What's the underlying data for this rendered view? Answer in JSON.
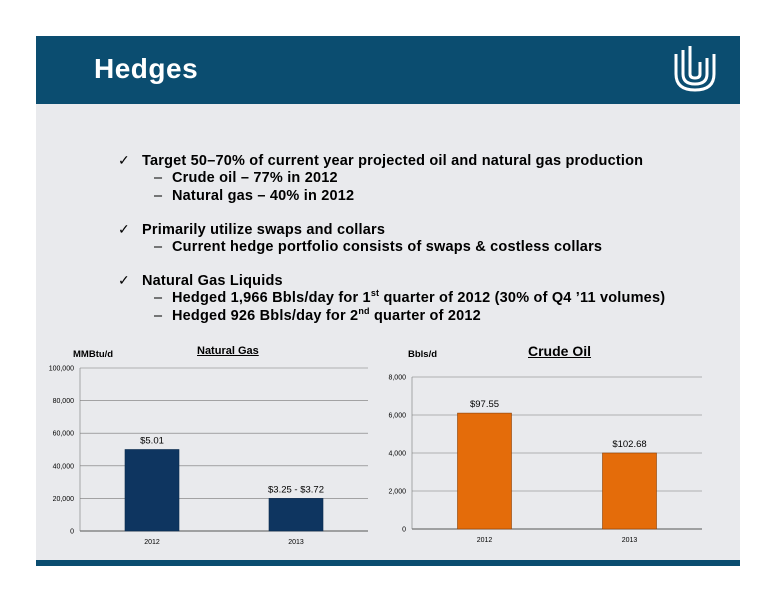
{
  "header": {
    "title": "Hedges"
  },
  "bullets": [
    {
      "text": "Target 50–70% of current year projected oil and natural gas production",
      "subs": [
        {
          "text": "Crude oil – 77% in 2012"
        },
        {
          "text": "Natural gas – 40% in 2012"
        }
      ]
    },
    {
      "text": "Primarily utilize swaps and collars",
      "subs": [
        {
          "text": "Current hedge portfolio consists of swaps & costless collars"
        }
      ]
    },
    {
      "text": "Natural Gas Liquids",
      "subs": [
        {
          "pre": "Hedged 1,966 Bbls/day for 1",
          "sup": "st",
          "post": " quarter of 2012 (30% of Q4 ’11 volumes)"
        },
        {
          "pre": "Hedged 926 Bbls/day for 2",
          "sup": "nd",
          "post": " quarter of 2012"
        }
      ]
    }
  ],
  "colors": {
    "header": "#0b4d70",
    "natural_gas_bar": "#0e3560",
    "crude_oil_bar": "#e46c0a",
    "background": "#e9eaed"
  },
  "chart_data": [
    {
      "type": "bar",
      "title": "Natural Gas",
      "ylabel": "MMBtu/d",
      "categories": [
        "2012",
        "2013"
      ],
      "values": [
        50000,
        20000
      ],
      "data_labels": [
        "$5.01",
        "$3.25 - $3.72"
      ],
      "ylim": [
        0,
        100000
      ],
      "yticks": [
        "0",
        "20,000",
        "40,000",
        "60,000",
        "80,000",
        "100,000"
      ],
      "grid": true
    },
    {
      "type": "bar",
      "title": "Crude Oil",
      "ylabel": "Bbls/d",
      "categories": [
        "2012",
        "2013"
      ],
      "values": [
        6100,
        4000
      ],
      "data_labels": [
        "$97.55",
        "$102.68"
      ],
      "ylim": [
        0,
        8000
      ],
      "yticks": [
        "0",
        "2,000",
        "4,000",
        "6,000",
        "8,000"
      ],
      "grid": true
    }
  ]
}
